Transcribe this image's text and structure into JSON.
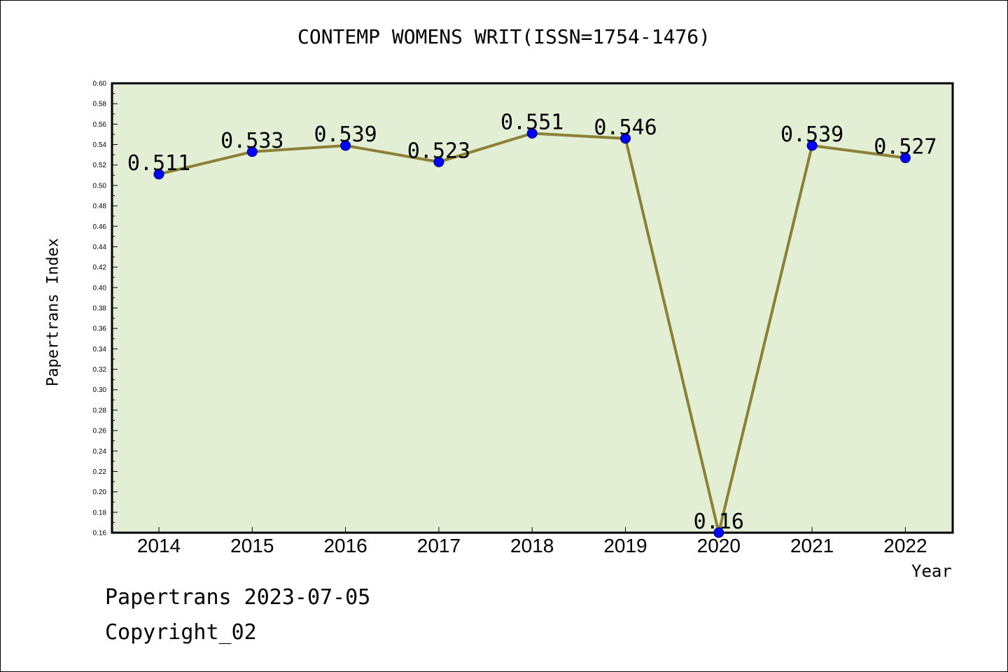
{
  "footer": {
    "date_text": "Papertrans 2023-07-05",
    "copyright": "Copyright_02"
  },
  "colors": {
    "plot_background": "#e2efd5",
    "line": "#8b8035",
    "marker": "#0000ff",
    "axis": "#000000"
  },
  "chart_data": {
    "type": "line",
    "title": "CONTEMP WOMENS WRIT(ISSN=1754-1476)",
    "xlabel": "Year",
    "ylabel": "Papertrans Index",
    "x": [
      "2014",
      "2015",
      "2016",
      "2017",
      "2018",
      "2019",
      "2020",
      "2021",
      "2022"
    ],
    "series": [
      {
        "values": [
          0.511,
          0.533,
          0.539,
          0.523,
          0.551,
          0.546,
          0.16,
          0.539,
          0.527
        ],
        "labels": [
          "0.511",
          "0.533",
          "0.539",
          "0.523",
          "0.551",
          "0.546",
          "0.16",
          "0.539",
          "0.527"
        ]
      }
    ],
    "ylim": [
      0.16,
      0.6
    ],
    "ytick_step": 0.02,
    "grid": false,
    "legend": "none"
  }
}
